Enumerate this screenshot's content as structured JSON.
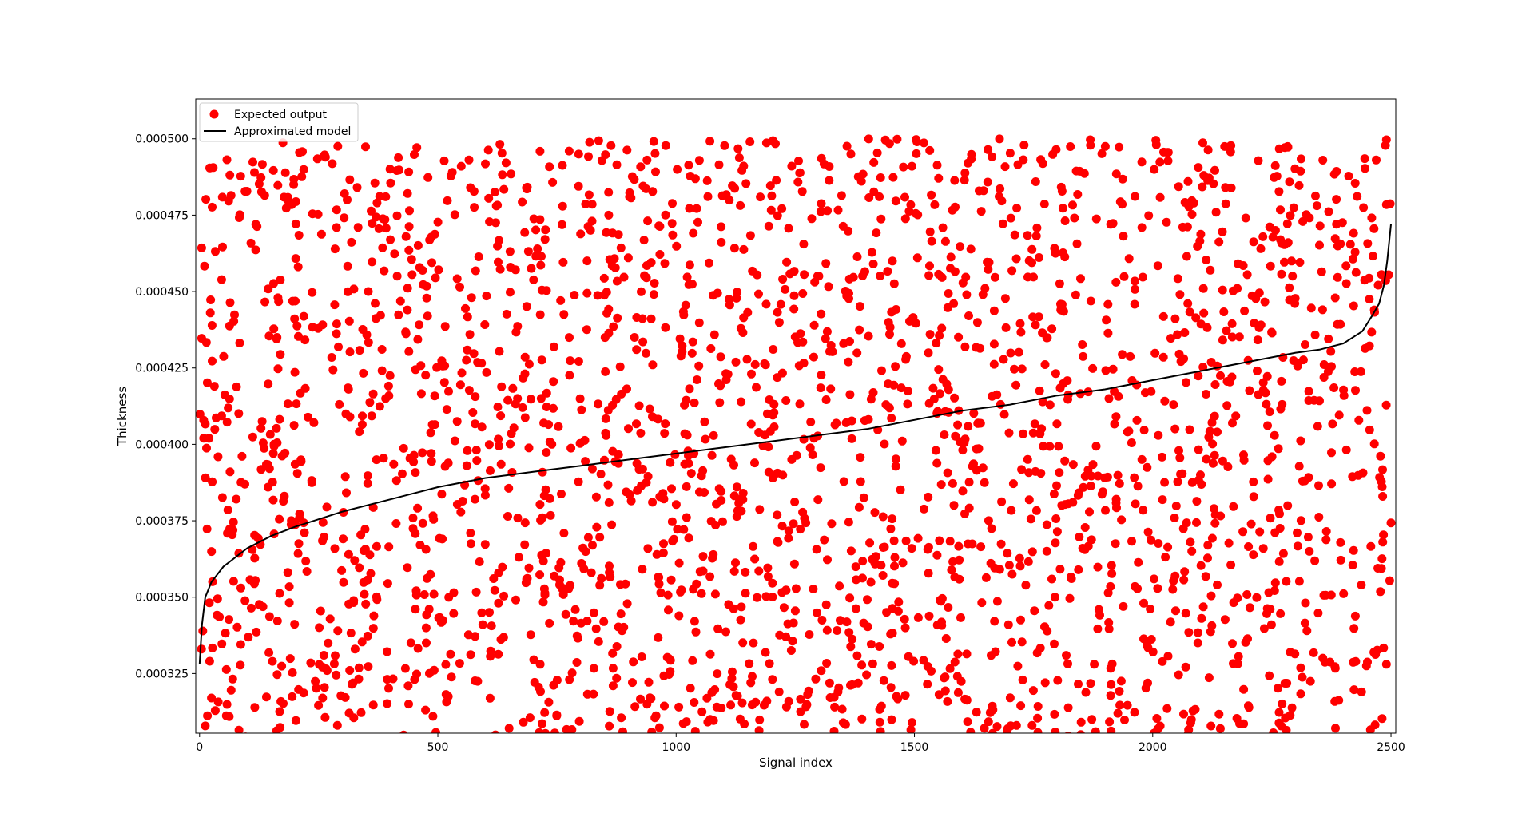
{
  "chart_data": {
    "type": "scatter",
    "title": "",
    "xlabel": "Signal index",
    "ylabel": "Thickness",
    "xlim": [
      -8,
      2510
    ],
    "ylim": [
      0.0003055,
      0.000513
    ],
    "xticks": [
      0,
      500,
      1000,
      1500,
      2000,
      2500
    ],
    "xtick_labels": [
      "0",
      "500",
      "1000",
      "1500",
      "2000",
      "2500"
    ],
    "yticks": [
      0.000325,
      0.00035,
      0.000375,
      0.0004,
      0.000425,
      0.00045,
      0.000475,
      0.0005
    ],
    "ytick_labels": [
      "0.000325",
      "0.000350",
      "0.000375",
      "0.000400",
      "0.000425",
      "0.000450",
      "0.000475",
      "0.000500"
    ],
    "grid": false,
    "legend_position": "upper-left",
    "legend": [
      "Expected output",
      "Approximated model"
    ],
    "series": [
      {
        "name": "Expected output",
        "kind": "scatter",
        "color": "#ff0000",
        "n_points": 2500,
        "distribution": "uniform",
        "x_range": [
          0,
          2500
        ],
        "y_range": [
          0.0003,
          0.0005
        ]
      },
      {
        "name": "Approximated model",
        "kind": "line",
        "color": "#000000",
        "x": [
          0,
          5,
          12,
          25,
          50,
          100,
          150,
          200,
          300,
          400,
          500,
          600,
          700,
          800,
          900,
          1000,
          1100,
          1200,
          1300,
          1400,
          1500,
          1600,
          1700,
          1800,
          1900,
          2000,
          2100,
          2200,
          2300,
          2350,
          2400,
          2440,
          2460,
          2475,
          2485,
          2492,
          2500
        ],
        "y": [
          0.000328,
          0.000341,
          0.00035,
          0.000355,
          0.00036,
          0.000366,
          0.00037,
          0.000373,
          0.000378,
          0.000382,
          0.000386,
          0.000389,
          0.000391,
          0.000393,
          0.000395,
          0.000397,
          0.000399,
          0.000401,
          0.000403,
          0.000405,
          0.000408,
          0.000411,
          0.000413,
          0.000416,
          0.000418,
          0.000421,
          0.000424,
          0.000427,
          0.00043,
          0.000431,
          0.000433,
          0.000437,
          0.000442,
          0.000446,
          0.000452,
          0.00046,
          0.000472
        ]
      }
    ]
  }
}
